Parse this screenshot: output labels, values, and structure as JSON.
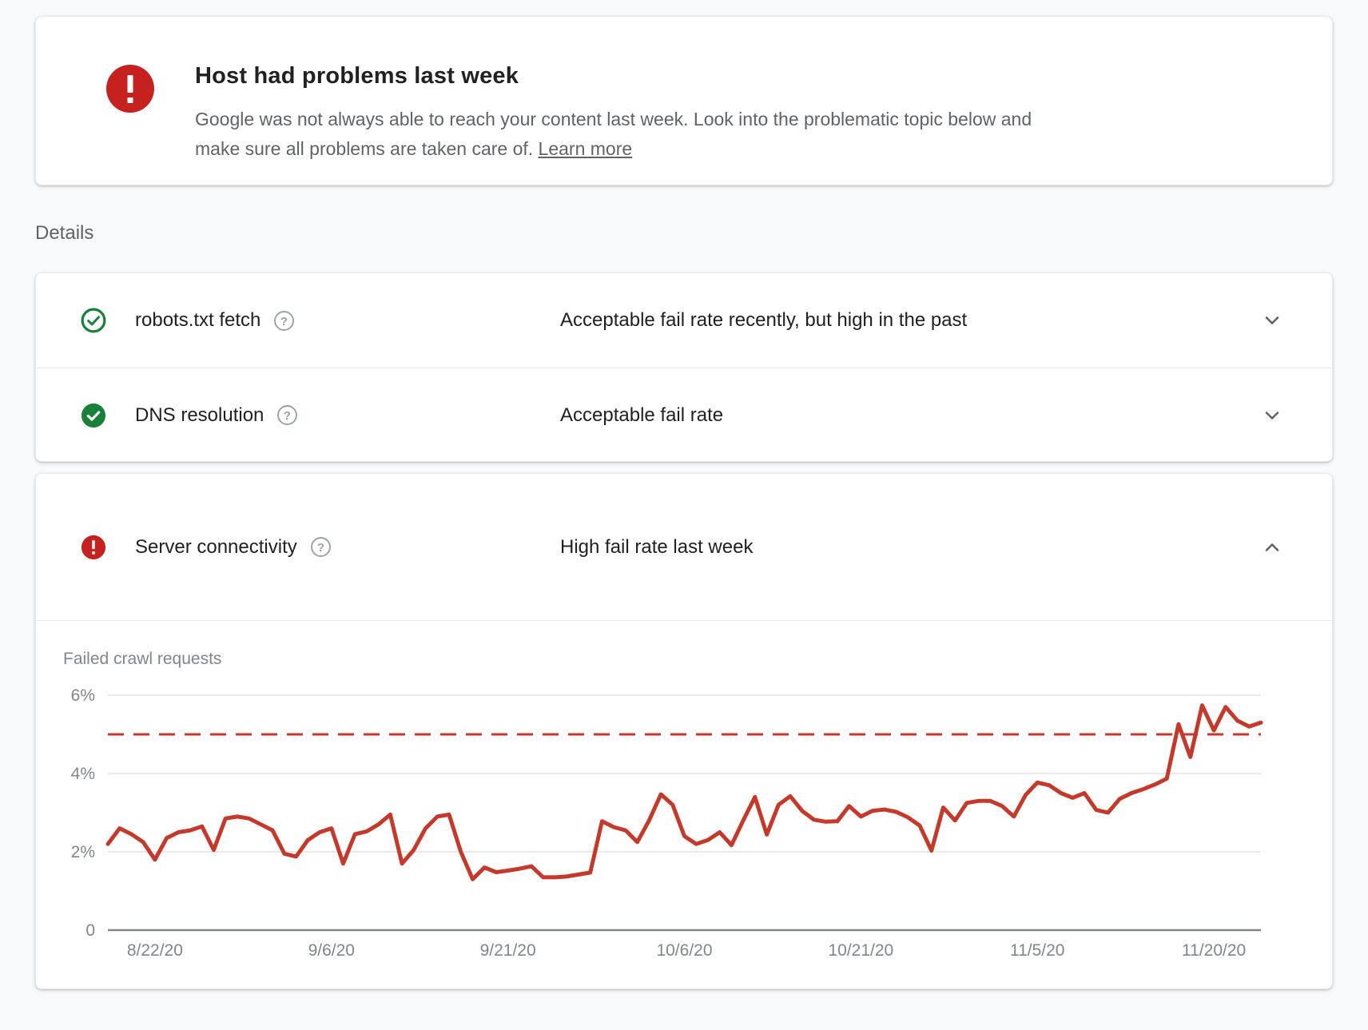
{
  "alert_card": {
    "title": "Host had problems last week",
    "description": "Google was not always able to reach your content last week. Look into the problematic topic below and make sure all problems are taken care of.",
    "learn_more_label": "Learn more"
  },
  "details": {
    "section_label": "Details",
    "rows": [
      {
        "label": "robots.txt fetch",
        "status": "Acceptable fail rate recently, but high in the past",
        "state": "ok-outline",
        "expanded": false
      },
      {
        "label": "DNS resolution",
        "status": "Acceptable fail rate",
        "state": "ok",
        "expanded": false
      },
      {
        "label": "Server connectivity",
        "status": "High fail rate last week",
        "state": "error",
        "expanded": true
      }
    ]
  },
  "chart_data": {
    "type": "line",
    "title": "Failed crawl requests",
    "series": [
      {
        "name": "Failed crawl requests (%)",
        "values": [
          2.2,
          2.6,
          2.45,
          2.25,
          1.8,
          2.35,
          2.5,
          2.55,
          2.65,
          2.05,
          2.85,
          2.9,
          2.85,
          2.7,
          2.55,
          1.95,
          1.88,
          2.3,
          2.5,
          2.6,
          1.7,
          2.45,
          2.52,
          2.7,
          2.95,
          1.7,
          2.05,
          2.6,
          2.9,
          2.95,
          2.0,
          1.3,
          1.6,
          1.48,
          1.52,
          1.57,
          1.63,
          1.35,
          1.35,
          1.37,
          1.42,
          1.47,
          2.78,
          2.63,
          2.55,
          2.25,
          2.8,
          3.47,
          3.2,
          2.4,
          2.2,
          2.3,
          2.5,
          2.17,
          2.8,
          3.4,
          2.44,
          3.2,
          3.42,
          3.05,
          2.82,
          2.77,
          2.78,
          3.17,
          2.9,
          3.05,
          3.08,
          3.02,
          2.88,
          2.67,
          2.03,
          3.13,
          2.8,
          3.25,
          3.3,
          3.3,
          3.17,
          2.9,
          3.45,
          3.77,
          3.7,
          3.5,
          3.38,
          3.5,
          3.07,
          3.0,
          3.35,
          3.5,
          3.6,
          3.72,
          3.87,
          5.26,
          4.42,
          5.74,
          5.1,
          5.7,
          5.35,
          5.2,
          5.3
        ]
      }
    ],
    "x_tick_labels": [
      "8/22/20",
      "9/6/20",
      "9/21/20",
      "10/6/20",
      "10/21/20",
      "11/5/20",
      "11/20/20"
    ],
    "x_tick_point_index": [
      4,
      19,
      34,
      49,
      64,
      79,
      94
    ],
    "y_ticks": [
      "6%",
      "4%",
      "2%",
      "0"
    ],
    "y_tick_values": [
      6,
      4,
      2,
      0
    ],
    "ylim": [
      0,
      6
    ],
    "threshold_value": 5,
    "threshold_style": "dashed",
    "grid": true,
    "legend": "none",
    "line_color": "#c5392b"
  },
  "icons": {
    "alert": "exclamation-circle",
    "ok": "check-circle",
    "help": "question-circle",
    "expand": "chevron-down",
    "collapse": "chevron-up"
  },
  "colors": {
    "error_red": "#c5221f",
    "success_green": "#188038",
    "text_primary": "#202124",
    "text_secondary": "#5f6368",
    "axis_gray": "#80868b",
    "page_bg": "#f8f9fa"
  }
}
